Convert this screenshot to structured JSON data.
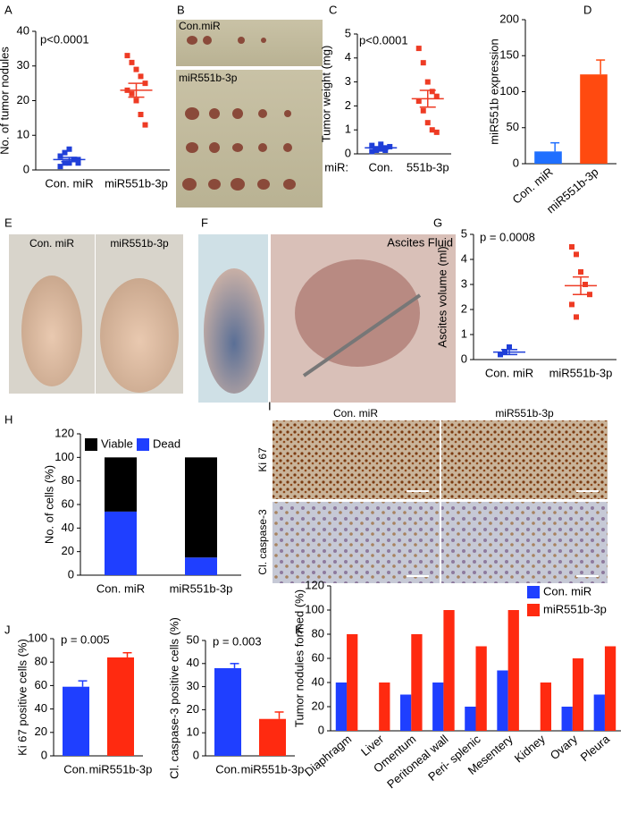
{
  "chart_data": [
    {
      "panel": "A",
      "type": "strip",
      "ylabel": "No. of tumor nodules",
      "annotation": "p<0.0001",
      "categories": [
        "Con. miR",
        "miR551b-3p"
      ],
      "colors": [
        "#1f3fd8",
        "#ee3b24"
      ],
      "points": [
        [
          1,
          2,
          2,
          3,
          3,
          4,
          5,
          6,
          3,
          2
        ],
        [
          33,
          31,
          29,
          27,
          25,
          23,
          22,
          20,
          16,
          13
        ]
      ],
      "means": [
        3,
        23
      ],
      "errors": [
        0.6,
        2
      ],
      "ylim": [
        0,
        40
      ],
      "yticks": [
        0,
        10,
        20,
        30,
        40
      ]
    },
    {
      "panel": "C",
      "type": "strip",
      "ylabel": "Tumor weight (mg)",
      "annotation": "p<0.0001",
      "xprefix": "miR:",
      "categories": [
        "Con.",
        "551b-3p"
      ],
      "colors": [
        "#1f3fd8",
        "#ee3b24"
      ],
      "points": [
        [
          0.1,
          0.15,
          0.2,
          0.25,
          0.3,
          0.35,
          0.2,
          0.4,
          0.15
        ],
        [
          4.4,
          3.8,
          3.0,
          2.6,
          2.4,
          2.2,
          1.8,
          1.3,
          1.0,
          0.9
        ]
      ],
      "means": [
        0.25,
        2.3
      ],
      "errors": [
        0.05,
        0.35
      ],
      "ylim": [
        0,
        5
      ],
      "yticks": [
        0,
        1,
        2,
        3,
        4,
        5
      ]
    },
    {
      "panel": "D",
      "type": "bar",
      "ylabel": "miR551b expression",
      "categories": [
        "Con. miR",
        "miR551b-3p"
      ],
      "colors": [
        "#1f6fff",
        "#ff4a10"
      ],
      "values": [
        17,
        124
      ],
      "errors": [
        12,
        20
      ],
      "ylim": [
        0,
        200
      ],
      "yticks": [
        0,
        50,
        100,
        150,
        200
      ]
    },
    {
      "panel": "G",
      "type": "strip",
      "ylabel": "Ascites volume (ml)",
      "annotation": "p = 0.0008",
      "categories": [
        "Con. miR",
        "miR551b-3p"
      ],
      "colors": [
        "#1f3fd8",
        "#ee3b24"
      ],
      "points": [
        [
          0.2,
          0.3,
          0.5
        ],
        [
          4.5,
          4.2,
          3.5,
          3.0,
          2.6,
          2.2,
          1.7
        ]
      ],
      "means": [
        0.3,
        2.95
      ],
      "errors": [
        0.1,
        0.35
      ],
      "ylim": [
        0,
        5
      ],
      "yticks": [
        0,
        1,
        2,
        3,
        4,
        5
      ]
    },
    {
      "panel": "H",
      "type": "stacked_bar",
      "ylabel": "No. of cells (%)",
      "categories": [
        "Con. miR",
        "miR551b-3p"
      ],
      "series": [
        {
          "name": "Viable",
          "color": "#000000",
          "values": [
            46,
            85
          ]
        },
        {
          "name": "Dead",
          "color": "#1f3fff",
          "values": [
            54,
            15
          ]
        }
      ],
      "ylim": [
        0,
        120
      ],
      "yticks": [
        0,
        20,
        40,
        60,
        80,
        100,
        120
      ]
    },
    {
      "panel": "J",
      "type": "bar",
      "ylabel": "Ki 67 positive cells (%)",
      "annotation": "p = 0.005",
      "categories": [
        "Con.",
        "miR551b-3p"
      ],
      "colors": [
        "#1f3fff",
        "#ff2a10"
      ],
      "values": [
        59,
        84
      ],
      "errors": [
        5,
        4
      ],
      "ylim": [
        0,
        100
      ],
      "yticks": [
        0,
        20,
        40,
        60,
        80,
        100
      ]
    },
    {
      "type": "bar",
      "ylabel": "Cl. caspase-3 positive cells (%)",
      "annotation": "p = 0.003",
      "categories": [
        "Con.",
        "miR551b-3p"
      ],
      "colors": [
        "#1f3fff",
        "#ff2a10"
      ],
      "values": [
        38,
        16
      ],
      "errors": [
        2,
        3
      ],
      "ylim": [
        0,
        50
      ],
      "yticks": [
        0,
        10,
        20,
        30,
        40,
        50
      ]
    },
    {
      "panel": "K",
      "type": "grouped_bar",
      "ylabel": "Tumor nodules formed (%)",
      "categories": [
        "Diaphragm",
        "Liver",
        "Omentum",
        "Peritoneal wall",
        "Peri- splenic",
        "Mesentery",
        "Kidney",
        "Ovary",
        "Pleura"
      ],
      "series": [
        {
          "name": "Con. miR",
          "color": "#1f3fff",
          "values": [
            40,
            0,
            30,
            40,
            20,
            50,
            0,
            20,
            30
          ]
        },
        {
          "name": "miR551b-3p",
          "color": "#ff2a10",
          "values": [
            80,
            40,
            80,
            100,
            70,
            100,
            40,
            60,
            70
          ]
        }
      ],
      "ylim": [
        0,
        120
      ],
      "yticks": [
        0,
        20,
        40,
        60,
        80,
        100,
        120
      ]
    }
  ],
  "images": [
    {
      "panel": "B",
      "labels": [
        "Con.miR",
        "miR551b-3p"
      ]
    },
    {
      "panel": "E",
      "labels": [
        "Con. miR",
        "miR551b-3p"
      ]
    },
    {
      "panel": "F",
      "labels": [
        "Ascites Fluid"
      ]
    },
    {
      "panel": "I",
      "labels": [
        "Con. miR",
        "miR551b-3p",
        "Ki 67",
        "Cl. caspase-3"
      ]
    }
  ]
}
